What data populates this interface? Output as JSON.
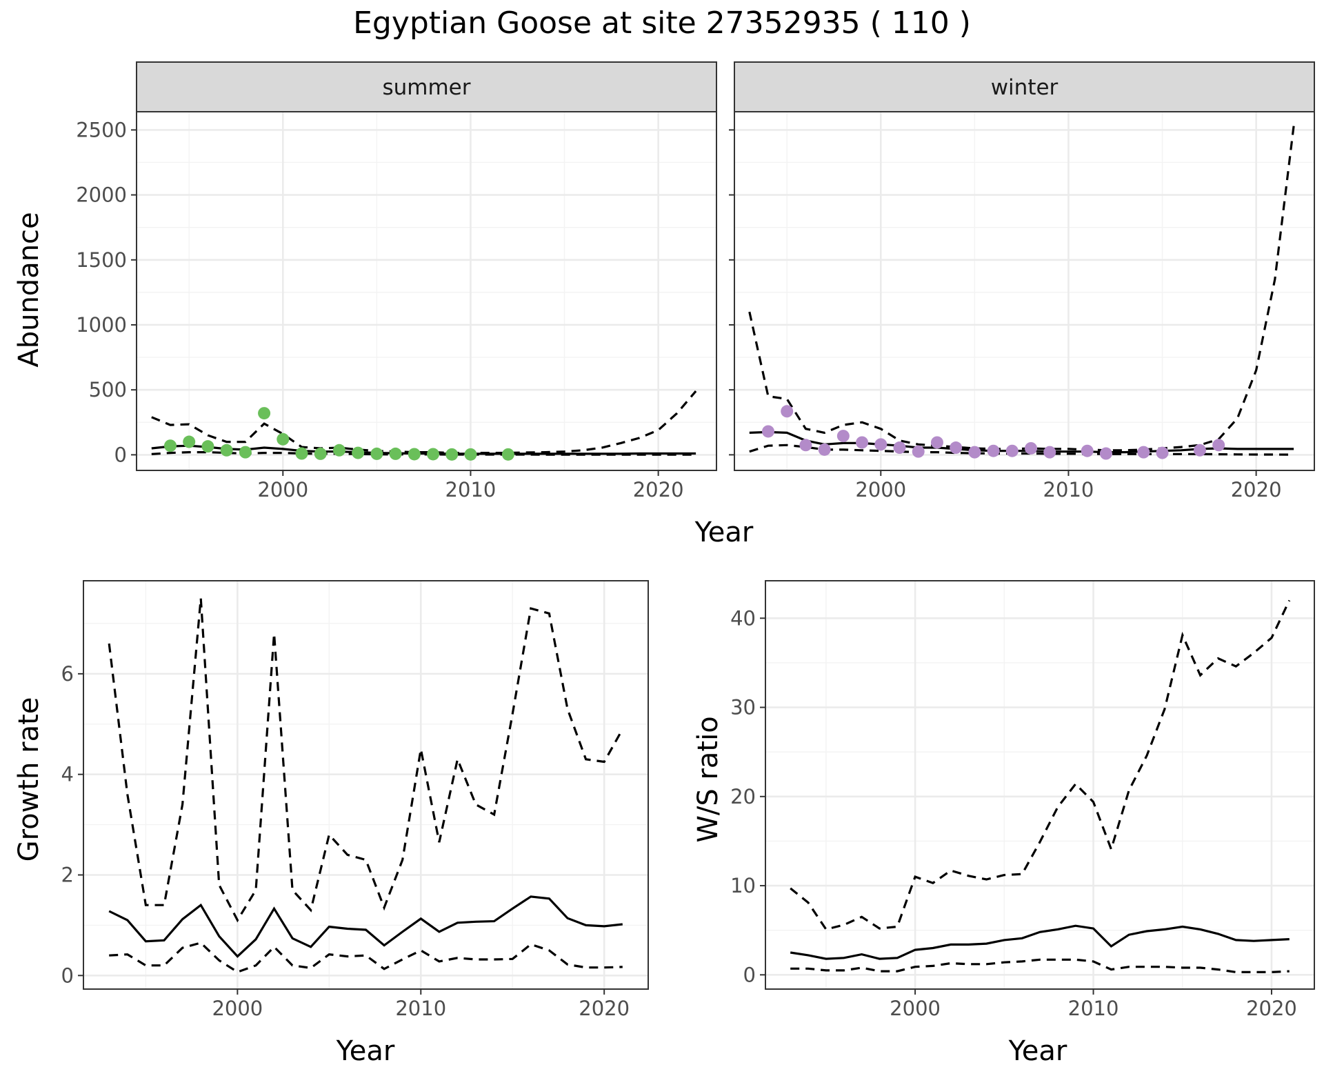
{
  "title": "Egyptian Goose at site 27352935 ( 110 )",
  "colors": {
    "summer_points": "#6abf5a",
    "winter_points": "#b38bc9"
  },
  "chart_data": [
    {
      "type": "line",
      "id": "summer",
      "facet_label": "summer",
      "xlabel": "Year",
      "ylabel": "Abundance",
      "xlim": [
        1992.2,
        2023.1
      ],
      "ylim": [
        -120,
        2640
      ],
      "x_ticks": [
        2000,
        2010,
        2020
      ],
      "y_ticks": [
        0,
        500,
        1000,
        1500,
        2000,
        2500
      ],
      "grid": true,
      "points": {
        "name": "observed",
        "x": [
          1994,
          1995,
          1996,
          1997,
          1998,
          1999,
          2000,
          2001,
          2002,
          2003,
          2004,
          2005,
          2006,
          2007,
          2008,
          2009,
          2010,
          2012
        ],
        "y": [
          70,
          100,
          65,
          35,
          20,
          320,
          120,
          10,
          8,
          35,
          15,
          8,
          8,
          5,
          5,
          3,
          3,
          3
        ]
      },
      "series": [
        {
          "name": "fitted",
          "style": "solid",
          "x": [
            1993,
            1994,
            1995,
            1996,
            1997,
            1998,
            1999,
            2000,
            2001,
            2002,
            2003,
            2004,
            2005,
            2006,
            2007,
            2008,
            2009,
            2010,
            2011,
            2012,
            2013,
            2014,
            2015,
            2016,
            2017,
            2018,
            2019,
            2020,
            2021,
            2022
          ],
          "y": [
            50,
            65,
            70,
            60,
            45,
            40,
            55,
            45,
            30,
            25,
            25,
            20,
            15,
            12,
            10,
            10,
            8,
            8,
            8,
            8,
            8,
            8,
            8,
            8,
            8,
            8,
            10,
            10,
            10,
            10
          ]
        },
        {
          "name": "upper",
          "style": "dashed",
          "x": [
            1993,
            1994,
            1995,
            1996,
            1997,
            1998,
            1999,
            2000,
            2001,
            2002,
            2003,
            2004,
            2005,
            2006,
            2007,
            2008,
            2009,
            2010,
            2011,
            2012,
            2013,
            2014,
            2015,
            2016,
            2017,
            2018,
            2019,
            2020,
            2021,
            2022
          ],
          "y": [
            290,
            230,
            235,
            150,
            100,
            100,
            240,
            160,
            60,
            50,
            55,
            40,
            30,
            25,
            20,
            20,
            15,
            15,
            15,
            15,
            18,
            20,
            25,
            35,
            55,
            90,
            130,
            190,
            320,
            490
          ]
        },
        {
          "name": "lower",
          "style": "dashed",
          "x": [
            1993,
            1994,
            1995,
            1996,
            1997,
            1998,
            1999,
            2000,
            2001,
            2002,
            2003,
            2004,
            2005,
            2006,
            2007,
            2008,
            2009,
            2010,
            2011,
            2012,
            2013,
            2014,
            2015,
            2016,
            2017,
            2018,
            2019,
            2020,
            2021,
            2022
          ],
          "y": [
            5,
            15,
            20,
            20,
            15,
            10,
            15,
            15,
            10,
            8,
            8,
            6,
            4,
            3,
            3,
            3,
            2,
            2,
            2,
            2,
            2,
            1,
            1,
            1,
            1,
            1,
            1,
            1,
            1,
            1
          ]
        }
      ]
    },
    {
      "type": "line",
      "id": "winter",
      "facet_label": "winter",
      "xlabel": "Year",
      "ylabel": "Abundance",
      "xlim": [
        1992.2,
        2023.1
      ],
      "ylim": [
        -120,
        2640
      ],
      "x_ticks": [
        2000,
        2010,
        2020
      ],
      "y_ticks": [
        0,
        500,
        1000,
        1500,
        2000,
        2500
      ],
      "grid": true,
      "points": {
        "name": "observed",
        "x": [
          1994,
          1995,
          1996,
          1997,
          1998,
          1999,
          2000,
          2001,
          2002,
          2003,
          2004,
          2005,
          2006,
          2007,
          2008,
          2009,
          2011,
          2012,
          2014,
          2015,
          2017,
          2018
        ],
        "y": [
          180,
          335,
          75,
          40,
          145,
          95,
          80,
          55,
          25,
          95,
          55,
          20,
          30,
          30,
          50,
          20,
          30,
          10,
          20,
          15,
          35,
          75
        ]
      },
      "series": [
        {
          "name": "fitted",
          "style": "solid",
          "x": [
            1993,
            1994,
            1995,
            1996,
            1997,
            1998,
            1999,
            2000,
            2001,
            2002,
            2003,
            2004,
            2005,
            2006,
            2007,
            2008,
            2009,
            2010,
            2011,
            2012,
            2013,
            2014,
            2015,
            2016,
            2017,
            2018,
            2019,
            2020,
            2021,
            2022
          ],
          "y": [
            170,
            175,
            170,
            110,
            80,
            90,
            90,
            80,
            70,
            55,
            55,
            45,
            35,
            30,
            30,
            30,
            25,
            25,
            25,
            20,
            20,
            25,
            30,
            35,
            45,
            50,
            45,
            45,
            45,
            45
          ]
        },
        {
          "name": "upper",
          "style": "dashed",
          "x": [
            1993,
            1994,
            1995,
            1996,
            1997,
            1998,
            1999,
            2000,
            2001,
            2002,
            2003,
            2004,
            2005,
            2006,
            2007,
            2008,
            2009,
            2010,
            2011,
            2012,
            2013,
            2014,
            2015,
            2016,
            2017,
            2018,
            2019,
            2020,
            2021,
            2022
          ],
          "y": [
            1100,
            450,
            430,
            200,
            170,
            230,
            250,
            200,
            110,
            80,
            70,
            60,
            50,
            45,
            45,
            50,
            45,
            45,
            40,
            35,
            35,
            40,
            50,
            60,
            75,
            120,
            280,
            650,
            1350,
            2530
          ]
        },
        {
          "name": "lower",
          "style": "dashed",
          "x": [
            1993,
            1994,
            1995,
            1996,
            1997,
            1998,
            1999,
            2000,
            2001,
            2002,
            2003,
            2004,
            2005,
            2006,
            2007,
            2008,
            2009,
            2010,
            2011,
            2012,
            2013,
            2014,
            2015,
            2016,
            2017,
            2018,
            2019,
            2020,
            2021,
            2022
          ],
          "y": [
            25,
            70,
            75,
            60,
            40,
            40,
            35,
            30,
            25,
            20,
            20,
            15,
            12,
            10,
            10,
            10,
            8,
            8,
            8,
            6,
            6,
            6,
            6,
            6,
            6,
            4,
            3,
            2,
            2,
            1
          ]
        }
      ]
    },
    {
      "type": "line",
      "id": "growth",
      "xlabel": "Year",
      "ylabel": "Growth rate",
      "xlim": [
        1991.6,
        2022.4
      ],
      "ylim": [
        -0.27,
        7.85
      ],
      "x_ticks": [
        2000,
        2010,
        2020
      ],
      "y_ticks": [
        0,
        2,
        4,
        6
      ],
      "grid": true,
      "series": [
        {
          "name": "fitted",
          "style": "solid",
          "x": [
            1993,
            1994,
            1995,
            1996,
            1997,
            1998,
            1999,
            2000,
            2001,
            2002,
            2003,
            2004,
            2005,
            2006,
            2007,
            2008,
            2009,
            2010,
            2011,
            2012,
            2013,
            2014,
            2015,
            2016,
            2017,
            2018,
            2019,
            2020,
            2021
          ],
          "y": [
            1.28,
            1.1,
            0.68,
            0.7,
            1.12,
            1.4,
            0.78,
            0.38,
            0.72,
            1.33,
            0.74,
            0.57,
            0.97,
            0.93,
            0.91,
            0.6,
            0.87,
            1.13,
            0.87,
            1.05,
            1.07,
            1.08,
            1.33,
            1.57,
            1.53,
            1.14,
            1.0,
            0.98,
            1.02
          ]
        },
        {
          "name": "upper",
          "style": "dashed",
          "x": [
            1993,
            1994,
            1995,
            1996,
            1997,
            1998,
            1999,
            2000,
            2001,
            2002,
            2003,
            2004,
            2005,
            2006,
            2007,
            2008,
            2009,
            2010,
            2011,
            2012,
            2013,
            2014,
            2015,
            2016,
            2017,
            2018,
            2019,
            2020,
            2021
          ],
          "y": [
            6.6,
            3.6,
            1.4,
            1.4,
            3.4,
            7.5,
            1.8,
            1.1,
            1.7,
            6.8,
            1.7,
            1.3,
            2.8,
            2.4,
            2.3,
            1.35,
            2.3,
            4.5,
            2.65,
            4.3,
            3.4,
            3.2,
            5.2,
            7.3,
            7.2,
            5.3,
            4.3,
            4.25,
            4.9
          ]
        },
        {
          "name": "lower",
          "style": "dashed",
          "x": [
            1993,
            1994,
            1995,
            1996,
            1997,
            1998,
            1999,
            2000,
            2001,
            2002,
            2003,
            2004,
            2005,
            2006,
            2007,
            2008,
            2009,
            2010,
            2011,
            2012,
            2013,
            2014,
            2015,
            2016,
            2017,
            2018,
            2019,
            2020,
            2021
          ],
          "y": [
            0.4,
            0.42,
            0.2,
            0.2,
            0.55,
            0.65,
            0.3,
            0.07,
            0.2,
            0.57,
            0.2,
            0.15,
            0.42,
            0.38,
            0.4,
            0.13,
            0.32,
            0.5,
            0.28,
            0.35,
            0.32,
            0.32,
            0.33,
            0.62,
            0.5,
            0.22,
            0.16,
            0.16,
            0.17
          ]
        }
      ]
    },
    {
      "type": "line",
      "id": "ratio",
      "xlabel": "Year",
      "ylabel": "W/S ratio",
      "xlim": [
        1991.6,
        2022.4
      ],
      "ylim": [
        -1.6,
        44.2
      ],
      "x_ticks": [
        2000,
        2010,
        2020
      ],
      "y_ticks": [
        0,
        10,
        20,
        30,
        40
      ],
      "grid": true,
      "series": [
        {
          "name": "fitted",
          "style": "solid",
          "x": [
            1993,
            1994,
            1995,
            1996,
            1997,
            1998,
            1999,
            2000,
            2001,
            2002,
            2003,
            2004,
            2005,
            2006,
            2007,
            2008,
            2009,
            2010,
            2011,
            2012,
            2013,
            2014,
            2015,
            2016,
            2017,
            2018,
            2019,
            2020,
            2021
          ],
          "y": [
            2.5,
            2.2,
            1.8,
            1.9,
            2.3,
            1.8,
            1.9,
            2.8,
            3.0,
            3.4,
            3.4,
            3.5,
            3.9,
            4.1,
            4.8,
            5.1,
            5.5,
            5.2,
            3.2,
            4.5,
            4.9,
            5.1,
            5.4,
            5.1,
            4.6,
            3.9,
            3.8,
            3.9,
            4.0
          ]
        },
        {
          "name": "upper",
          "style": "dashed",
          "x": [
            1993,
            1994,
            1995,
            1996,
            1997,
            1998,
            1999,
            2000,
            2001,
            2002,
            2003,
            2004,
            2005,
            2006,
            2007,
            2008,
            2009,
            2010,
            2011,
            2012,
            2013,
            2014,
            2015,
            2016,
            2017,
            2018,
            2019,
            2020,
            2021
          ],
          "y": [
            9.7,
            8.1,
            5.1,
            5.6,
            6.5,
            5.2,
            5.4,
            11.0,
            10.3,
            11.7,
            11.1,
            10.7,
            11.2,
            11.3,
            14.9,
            18.8,
            21.4,
            19.4,
            14.1,
            20.7,
            24.6,
            29.8,
            38.1,
            33.6,
            35.5,
            34.6,
            36.1,
            37.8,
            42.0
          ]
        },
        {
          "name": "lower",
          "style": "dashed",
          "x": [
            1993,
            1994,
            1995,
            1996,
            1997,
            1998,
            1999,
            2000,
            2001,
            2002,
            2003,
            2004,
            2005,
            2006,
            2007,
            2008,
            2009,
            2010,
            2011,
            2012,
            2013,
            2014,
            2015,
            2016,
            2017,
            2018,
            2019,
            2020,
            2021
          ],
          "y": [
            0.7,
            0.7,
            0.5,
            0.5,
            0.8,
            0.4,
            0.4,
            0.9,
            1.0,
            1.3,
            1.2,
            1.2,
            1.4,
            1.5,
            1.7,
            1.7,
            1.7,
            1.5,
            0.6,
            0.9,
            0.9,
            0.9,
            0.8,
            0.8,
            0.6,
            0.3,
            0.3,
            0.3,
            0.4
          ]
        }
      ]
    }
  ]
}
